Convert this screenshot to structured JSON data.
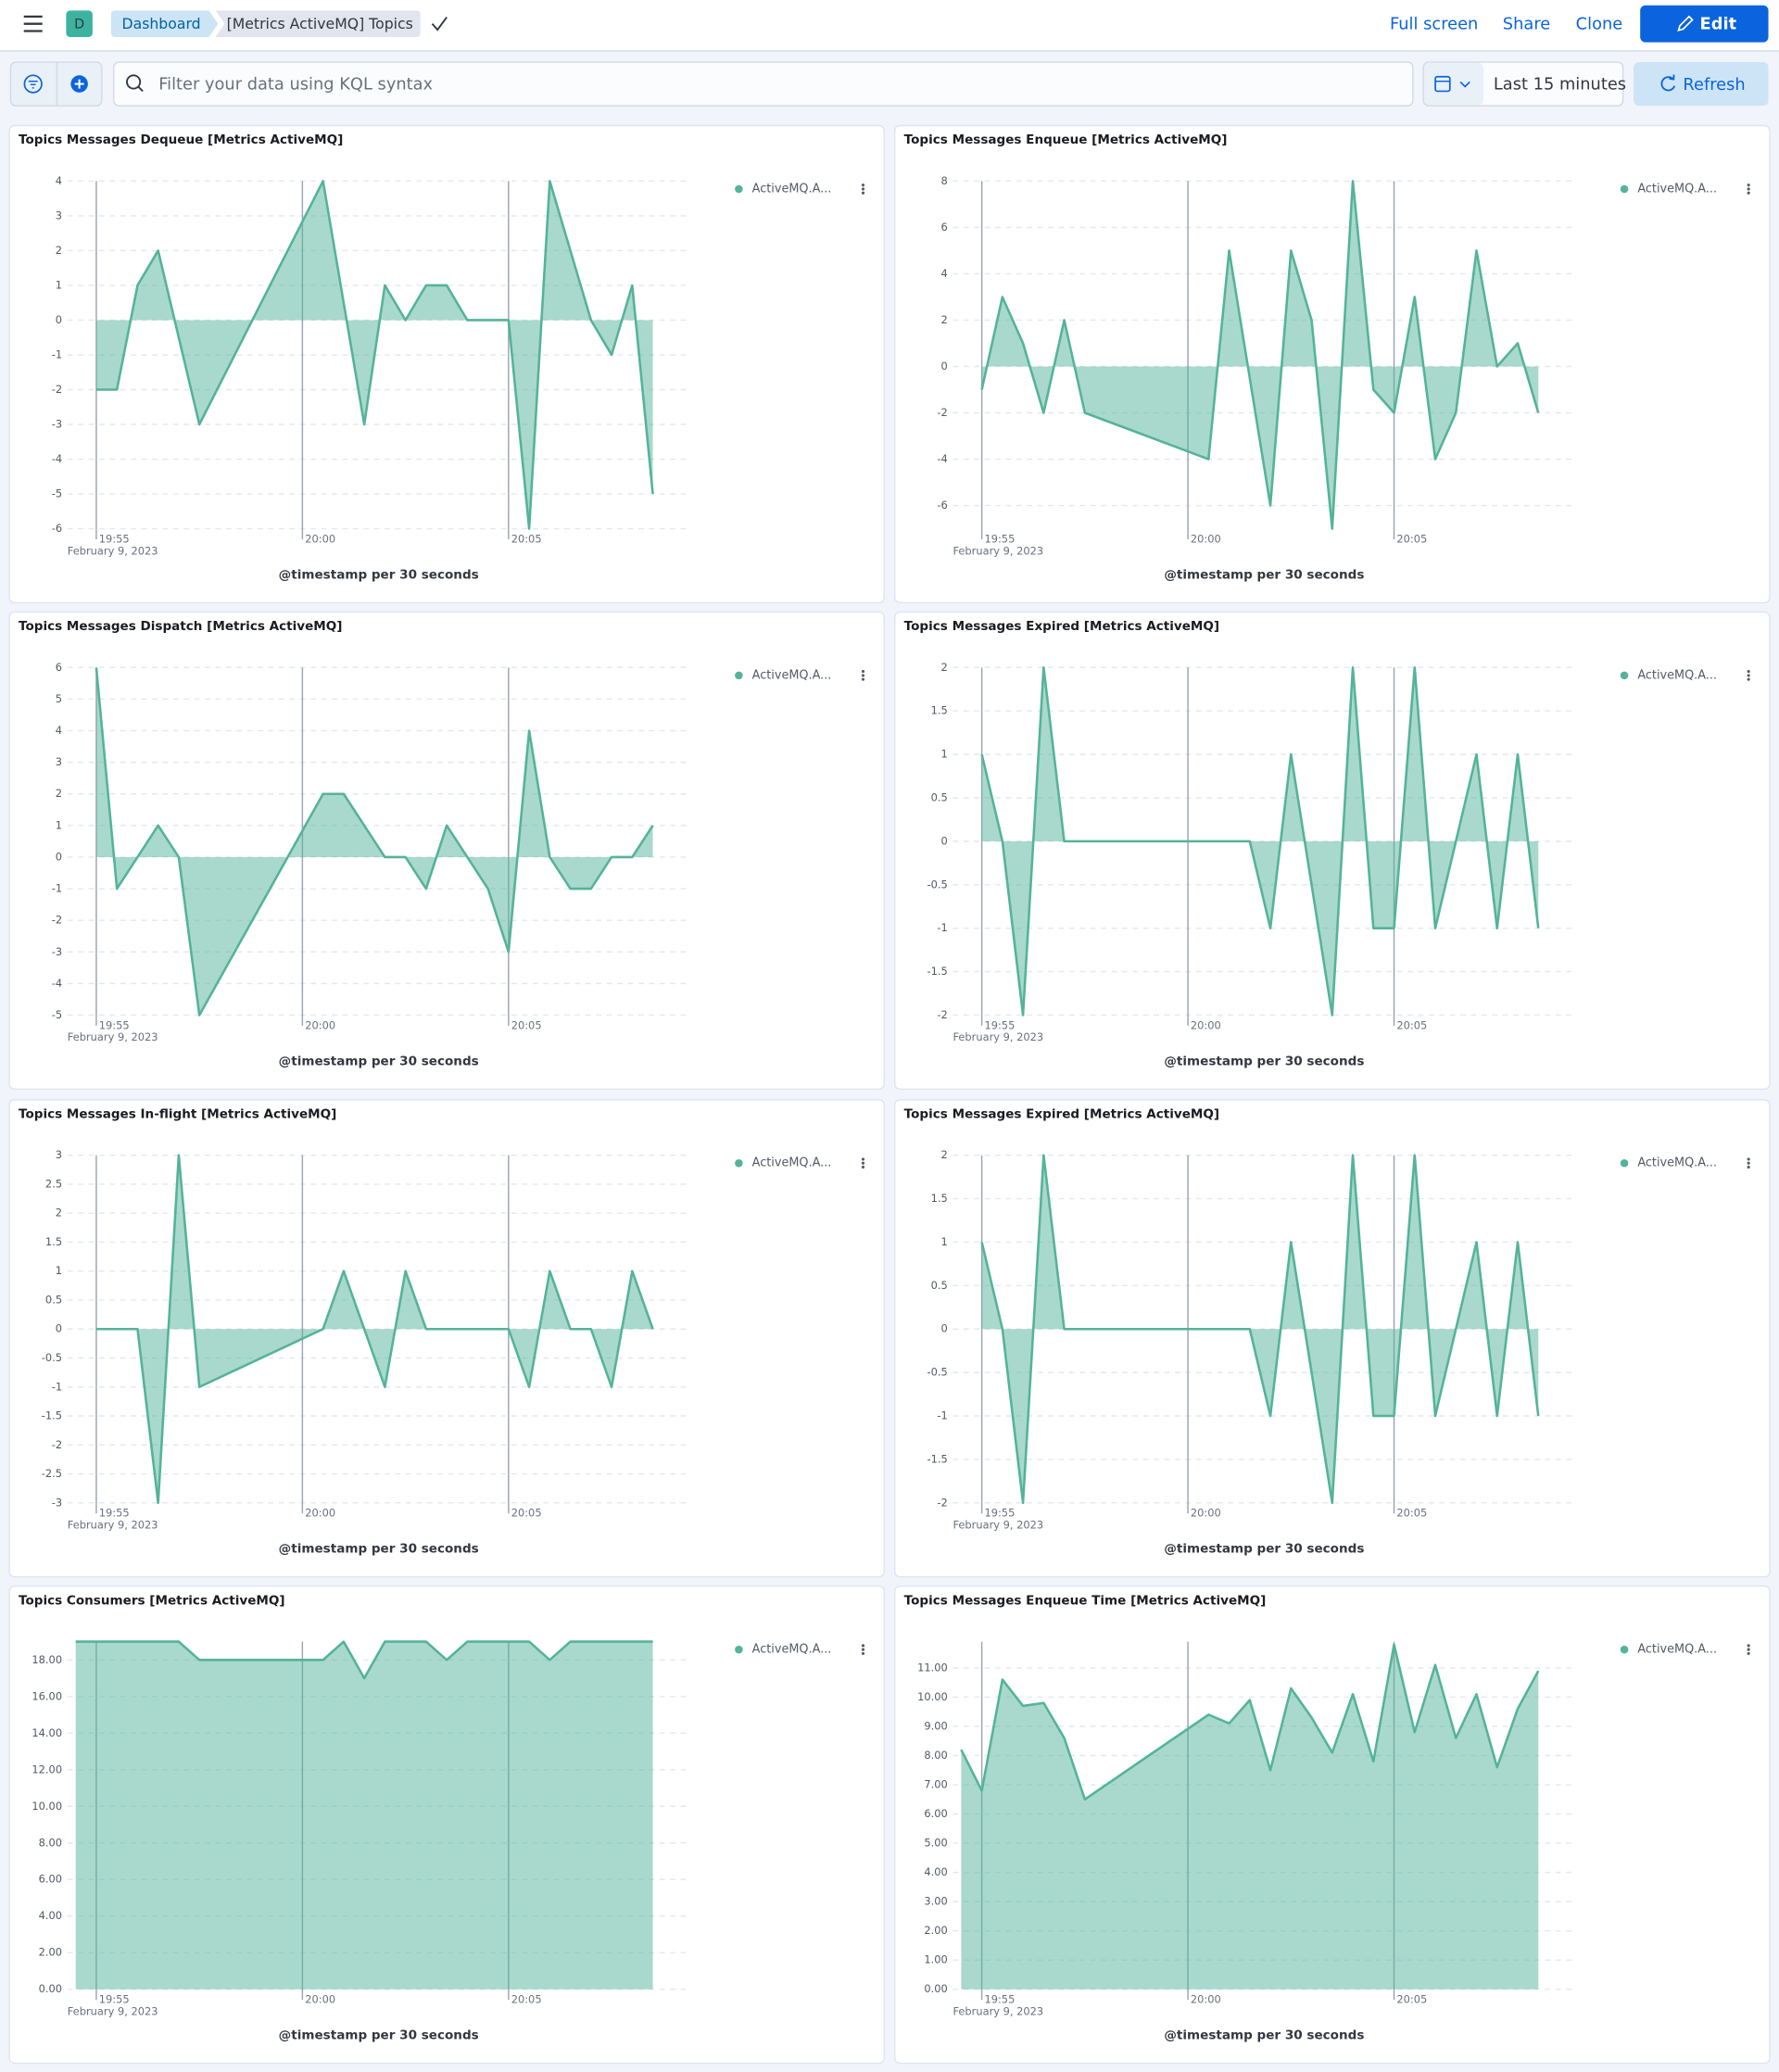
{
  "header": {
    "space": "D",
    "breadcrumbs": [
      "Dashboard",
      "[Metrics ActiveMQ] Topics"
    ],
    "actions": [
      "Full screen",
      "Share",
      "Clone"
    ],
    "edit": "Edit"
  },
  "query": {
    "placeholder": "Filter your data using KQL syntax",
    "time_range": "Last 15 minutes",
    "refresh": "Refresh"
  },
  "chart_data": [
    {
      "type": "area",
      "title": "Topics Messages Dequeue [Metrics ActiveMQ]",
      "x_label": "@timestamp per 30 seconds",
      "x_sublabel": "February 9, 2023",
      "x": [
        1195,
        1195.5,
        1196,
        1196.5,
        1197.5,
        1200.5,
        1201.5,
        1202,
        1202.5,
        1203,
        1203.5,
        1204,
        1204.5,
        1205,
        1205.5,
        1206,
        1207,
        1207.5,
        1208,
        1208.5
      ],
      "series": [
        {
          "name": "ActiveMQ.A...",
          "color": "#54b399",
          "values": [
            -2,
            -2,
            1,
            2,
            -3,
            4,
            -3,
            1,
            0,
            1,
            1,
            0,
            0,
            0,
            -6,
            4,
            0,
            -1,
            1,
            -5
          ]
        }
      ],
      "xlim": [
        1194.3,
        1209.4
      ],
      "xticks": [
        {
          "value": 1195,
          "label": "19:55"
        },
        {
          "value": 1200,
          "label": "20:00"
        },
        {
          "value": 1205,
          "label": "20:05"
        }
      ],
      "ylim": [
        -6,
        4
      ],
      "yticks": [
        -6,
        -5,
        -4,
        -3,
        -2,
        -1,
        0,
        1,
        2,
        3,
        4
      ],
      "grid": true,
      "legend": "right"
    },
    {
      "type": "area",
      "title": "Topics Messages Enqueue [Metrics ActiveMQ]",
      "x_label": "@timestamp per 30 seconds",
      "x_sublabel": "February 9, 2023",
      "x": [
        1195,
        1195.5,
        1196,
        1196.5,
        1197,
        1197.5,
        1200.5,
        1201,
        1202,
        1202.5,
        1203,
        1203.5,
        1204,
        1204.5,
        1205,
        1205.5,
        1206,
        1206.5,
        1207,
        1207.5,
        1208,
        1208.5
      ],
      "series": [
        {
          "name": "ActiveMQ.A...",
          "color": "#54b399",
          "values": [
            -1,
            3,
            1,
            -2,
            2,
            -2,
            -4,
            5,
            -6,
            5,
            2,
            -7,
            8,
            -1,
            -2,
            3,
            -4,
            -2,
            5,
            0,
            1,
            -2
          ]
        }
      ],
      "xlim": [
        1194.3,
        1209.4
      ],
      "xticks": [
        {
          "value": 1195,
          "label": "19:55"
        },
        {
          "value": 1200,
          "label": "20:00"
        },
        {
          "value": 1205,
          "label": "20:05"
        }
      ],
      "ylim": [
        -7,
        8
      ],
      "yticks": [
        -6,
        -4,
        -2,
        0,
        2,
        4,
        6,
        8
      ],
      "grid": true,
      "legend": "right"
    },
    {
      "type": "area",
      "title": "Topics Messages Dispatch [Metrics ActiveMQ]",
      "x_label": "@timestamp per 30 seconds",
      "x_sublabel": "February 9, 2023",
      "x": [
        1195,
        1195.5,
        1196,
        1196.5,
        1197,
        1197.5,
        1200.5,
        1201,
        1202,
        1202.5,
        1203,
        1203.5,
        1204,
        1204.5,
        1205,
        1205.5,
        1206,
        1206.5,
        1207,
        1207.5,
        1208,
        1208.5
      ],
      "series": [
        {
          "name": "ActiveMQ.A...",
          "color": "#54b399",
          "values": [
            6,
            -1,
            0,
            1,
            0,
            -5,
            2,
            2,
            0,
            0,
            -1,
            1,
            0,
            -1,
            -3,
            4,
            0,
            -1,
            -1,
            0,
            0,
            1
          ]
        }
      ],
      "xlim": [
        1194.3,
        1209.4
      ],
      "xticks": [
        {
          "value": 1195,
          "label": "19:55"
        },
        {
          "value": 1200,
          "label": "20:00"
        },
        {
          "value": 1205,
          "label": "20:05"
        }
      ],
      "ylim": [
        -5,
        6
      ],
      "yticks": [
        -5,
        -4,
        -3,
        -2,
        -1,
        0,
        1,
        2,
        3,
        4,
        5,
        6
      ],
      "grid": true,
      "legend": "right"
    },
    {
      "type": "area",
      "title": "Topics Messages Expired [Metrics ActiveMQ]",
      "x_label": "@timestamp per 30 seconds",
      "x_sublabel": "February 9, 2023",
      "x": [
        1195,
        1195.5,
        1196,
        1196.5,
        1197,
        1201.5,
        1202,
        1202.5,
        1203.5,
        1204,
        1204.5,
        1205,
        1205.5,
        1206,
        1206.5,
        1207,
        1207.5,
        1208,
        1208.5
      ],
      "series": [
        {
          "name": "ActiveMQ.A...",
          "color": "#54b399",
          "values": [
            1,
            0,
            -2,
            2,
            0,
            0,
            -1,
            1,
            -2,
            2,
            -1,
            -1,
            2,
            -1,
            0,
            1,
            -1,
            1,
            -1
          ]
        }
      ],
      "xlim": [
        1194.3,
        1209.4
      ],
      "xticks": [
        {
          "value": 1195,
          "label": "19:55"
        },
        {
          "value": 1200,
          "label": "20:00"
        },
        {
          "value": 1205,
          "label": "20:05"
        }
      ],
      "ylim": [
        -2,
        2
      ],
      "yticks": [
        -2,
        -1.5,
        -1,
        -0.5,
        0,
        0.5,
        1,
        1.5,
        2
      ],
      "grid": true,
      "legend": "right"
    },
    {
      "type": "area",
      "title": "Topics Messages In-flight [Metrics ActiveMQ]",
      "x_label": "@timestamp per 30 seconds",
      "x_sublabel": "February 9, 2023",
      "x": [
        1195,
        1196,
        1196.5,
        1197,
        1197.5,
        1200.5,
        1201,
        1201.5,
        1202,
        1202.5,
        1203,
        1205,
        1205.5,
        1206,
        1206.5,
        1207,
        1207.5,
        1208,
        1208.5
      ],
      "series": [
        {
          "name": "ActiveMQ.A...",
          "color": "#54b399",
          "values": [
            0,
            0,
            -3,
            3,
            -1,
            0,
            1,
            0,
            -1,
            1,
            0,
            0,
            -1,
            1,
            0,
            0,
            -1,
            1,
            0
          ]
        }
      ],
      "xlim": [
        1194.3,
        1209.4
      ],
      "xticks": [
        {
          "value": 1195,
          "label": "19:55"
        },
        {
          "value": 1200,
          "label": "20:00"
        },
        {
          "value": 1205,
          "label": "20:05"
        }
      ],
      "ylim": [
        -3,
        3
      ],
      "yticks": [
        -3,
        -2.5,
        -2,
        -1.5,
        -1,
        -0.5,
        0,
        0.5,
        1,
        1.5,
        2,
        2.5,
        3
      ],
      "grid": true,
      "legend": "right"
    },
    {
      "type": "area",
      "title": "Topics Messages Expired [Metrics ActiveMQ]",
      "x_label": "@timestamp per 30 seconds",
      "x_sublabel": "February 9, 2023",
      "x": [
        1195,
        1195.5,
        1196,
        1196.5,
        1197,
        1201.5,
        1202,
        1202.5,
        1203.5,
        1204,
        1204.5,
        1205,
        1205.5,
        1206,
        1206.5,
        1207,
        1207.5,
        1208,
        1208.5
      ],
      "series": [
        {
          "name": "ActiveMQ.A...",
          "color": "#54b399",
          "values": [
            1,
            0,
            -2,
            2,
            0,
            0,
            -1,
            1,
            -2,
            2,
            -1,
            -1,
            2,
            -1,
            0,
            1,
            -1,
            1,
            -1
          ]
        }
      ],
      "xlim": [
        1194.3,
        1209.4
      ],
      "xticks": [
        {
          "value": 1195,
          "label": "19:55"
        },
        {
          "value": 1200,
          "label": "20:00"
        },
        {
          "value": 1205,
          "label": "20:05"
        }
      ],
      "ylim": [
        -2,
        2
      ],
      "yticks": [
        -2,
        -1.5,
        -1,
        -0.5,
        0,
        0.5,
        1,
        1.5,
        2
      ],
      "grid": true,
      "legend": "right"
    },
    {
      "type": "area",
      "title": "Topics Consumers [Metrics ActiveMQ]",
      "x_label": "@timestamp per 30 seconds",
      "x_sublabel": "February 9, 2023",
      "x": [
        1194.5,
        1197,
        1197.5,
        1200.5,
        1201,
        1201.5,
        1202,
        1203,
        1203.5,
        1204,
        1205.5,
        1206,
        1206.5,
        1208.5
      ],
      "series": [
        {
          "name": "ActiveMQ.A...",
          "color": "#54b399",
          "values": [
            19,
            19,
            18,
            18,
            19,
            17,
            19,
            19,
            18,
            19,
            19,
            18,
            19,
            19
          ]
        }
      ],
      "xlim": [
        1194.3,
        1209.4
      ],
      "xticks": [
        {
          "value": 1195,
          "label": "19:55"
        },
        {
          "value": 1200,
          "label": "20:00"
        },
        {
          "value": 1205,
          "label": "20:05"
        }
      ],
      "ylim": [
        0,
        19
      ],
      "yticks": [
        {
          "value": 0,
          "label": "0.00"
        },
        {
          "value": 2,
          "label": "2.00"
        },
        {
          "value": 4,
          "label": "4.00"
        },
        {
          "value": 6,
          "label": "6.00"
        },
        {
          "value": 8,
          "label": "8.00"
        },
        {
          "value": 10,
          "label": "10.00"
        },
        {
          "value": 12,
          "label": "12.00"
        },
        {
          "value": 14,
          "label": "14.00"
        },
        {
          "value": 16,
          "label": "16.00"
        },
        {
          "value": 18,
          "label": "18.00"
        }
      ],
      "grid": true,
      "legend": "right"
    },
    {
      "type": "area",
      "title": "Topics Messages Enqueue Time [Metrics ActiveMQ]",
      "x_label": "@timestamp per 30 seconds",
      "x_sublabel": "February 9, 2023",
      "x": [
        1194.5,
        1195,
        1195.5,
        1196,
        1196.5,
        1197,
        1197.5,
        1200.5,
        1201,
        1201.5,
        1202,
        1202.5,
        1203,
        1203.5,
        1204,
        1204.5,
        1205,
        1205.5,
        1206,
        1206.5,
        1207,
        1207.5,
        1208,
        1208.5
      ],
      "series": [
        {
          "name": "ActiveMQ.A...",
          "color": "#54b399",
          "values": [
            8.2,
            6.8,
            10.6,
            9.7,
            9.8,
            8.6,
            6.5,
            9.4,
            9.1,
            9.9,
            7.5,
            10.3,
            9.3,
            8.1,
            10.1,
            7.8,
            11.8,
            8.8,
            11.1,
            8.6,
            10.1,
            7.6,
            9.6,
            10.9
          ]
        }
      ],
      "xlim": [
        1194.3,
        1209.4
      ],
      "xticks": [
        {
          "value": 1195,
          "label": "19:55"
        },
        {
          "value": 1200,
          "label": "20:00"
        },
        {
          "value": 1205,
          "label": "20:05"
        }
      ],
      "ylim": [
        0,
        11.9
      ],
      "yticks": [
        {
          "value": 0,
          "label": "0.00"
        },
        {
          "value": 1,
          "label": "1.00"
        },
        {
          "value": 2,
          "label": "2.00"
        },
        {
          "value": 3,
          "label": "3.00"
        },
        {
          "value": 4,
          "label": "4.00"
        },
        {
          "value": 5,
          "label": "5.00"
        },
        {
          "value": 6,
          "label": "6.00"
        },
        {
          "value": 7,
          "label": "7.00"
        },
        {
          "value": 8,
          "label": "8.00"
        },
        {
          "value": 9,
          "label": "9.00"
        },
        {
          "value": 10,
          "label": "10.00"
        },
        {
          "value": 11,
          "label": "11.00"
        }
      ],
      "grid": true,
      "legend": "right"
    }
  ]
}
